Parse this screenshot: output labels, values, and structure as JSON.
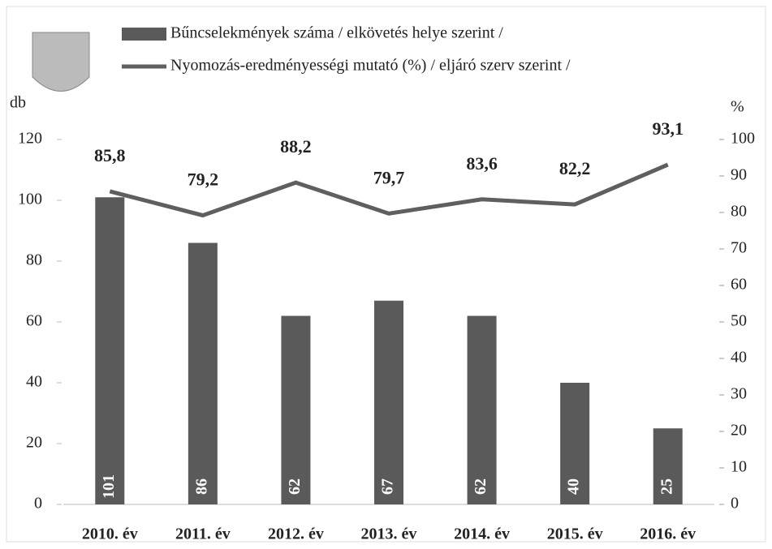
{
  "chart_data": {
    "type": "bar",
    "y_label": "db",
    "y2_label": "%",
    "categories": [
      "2010. év",
      "2011. év",
      "2012. év",
      "2013. év",
      "2014. év",
      "2015. év",
      "2016. év"
    ],
    "series": [
      {
        "name": "Bűncselekmények száma / elkövetés helye szerint /",
        "color": "#5a5a5a",
        "type": "bar",
        "values": [
          101,
          86,
          62,
          67,
          62,
          40,
          25
        ]
      },
      {
        "name": "Nyomozás-eredményességi mutató (%) / eljáró szerv szerint /",
        "color": "#5f5f5f",
        "type": "line",
        "axis": "y2",
        "values": [
          85.8,
          79.2,
          88.2,
          79.7,
          83.6,
          82.2,
          93.1
        ],
        "value_labels": [
          "85,8",
          "79,2",
          "88,2",
          "79,7",
          "83,6",
          "82,2",
          "93,1"
        ]
      }
    ],
    "ylim": [
      0,
      120
    ],
    "yticks": [
      0,
      20,
      40,
      60,
      80,
      100,
      120
    ],
    "y2lim": [
      0,
      100
    ],
    "y2ticks": [
      0,
      10,
      20,
      30,
      40,
      50,
      60,
      70,
      80,
      90,
      100
    ]
  }
}
